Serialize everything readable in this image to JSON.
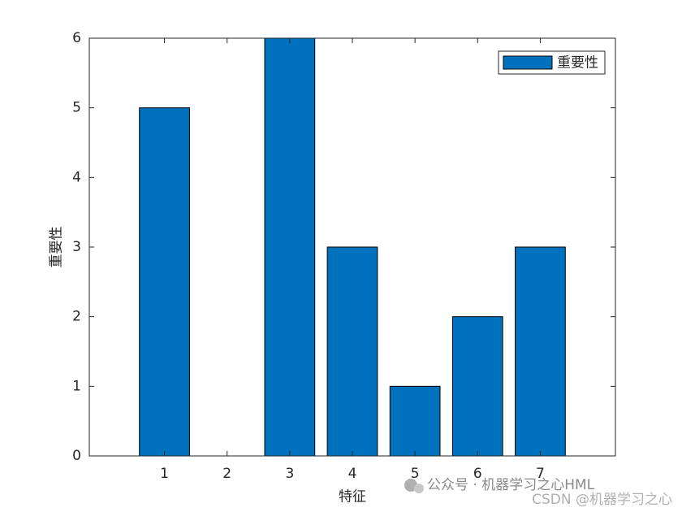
{
  "chart_data": {
    "type": "bar",
    "x": [
      1,
      2,
      3,
      4,
      5,
      6,
      7
    ],
    "values": [
      5,
      0,
      6,
      3,
      1,
      2,
      3
    ],
    "series_name": "重要性",
    "color": "#0072bd",
    "xlabel": "特征",
    "ylabel": "重要性",
    "xlim": [
      -0.2,
      8.2
    ],
    "xticks": [
      1,
      2,
      3,
      4,
      5,
      6,
      7
    ],
    "ylim": [
      0,
      6
    ],
    "yticks": [
      0,
      1,
      2,
      3,
      4,
      5,
      6
    ],
    "grid": false,
    "legend": "upper right"
  },
  "watermark": [
    "公众号 · 机器学习之心HML",
    "CSDN @机器学习之心"
  ]
}
